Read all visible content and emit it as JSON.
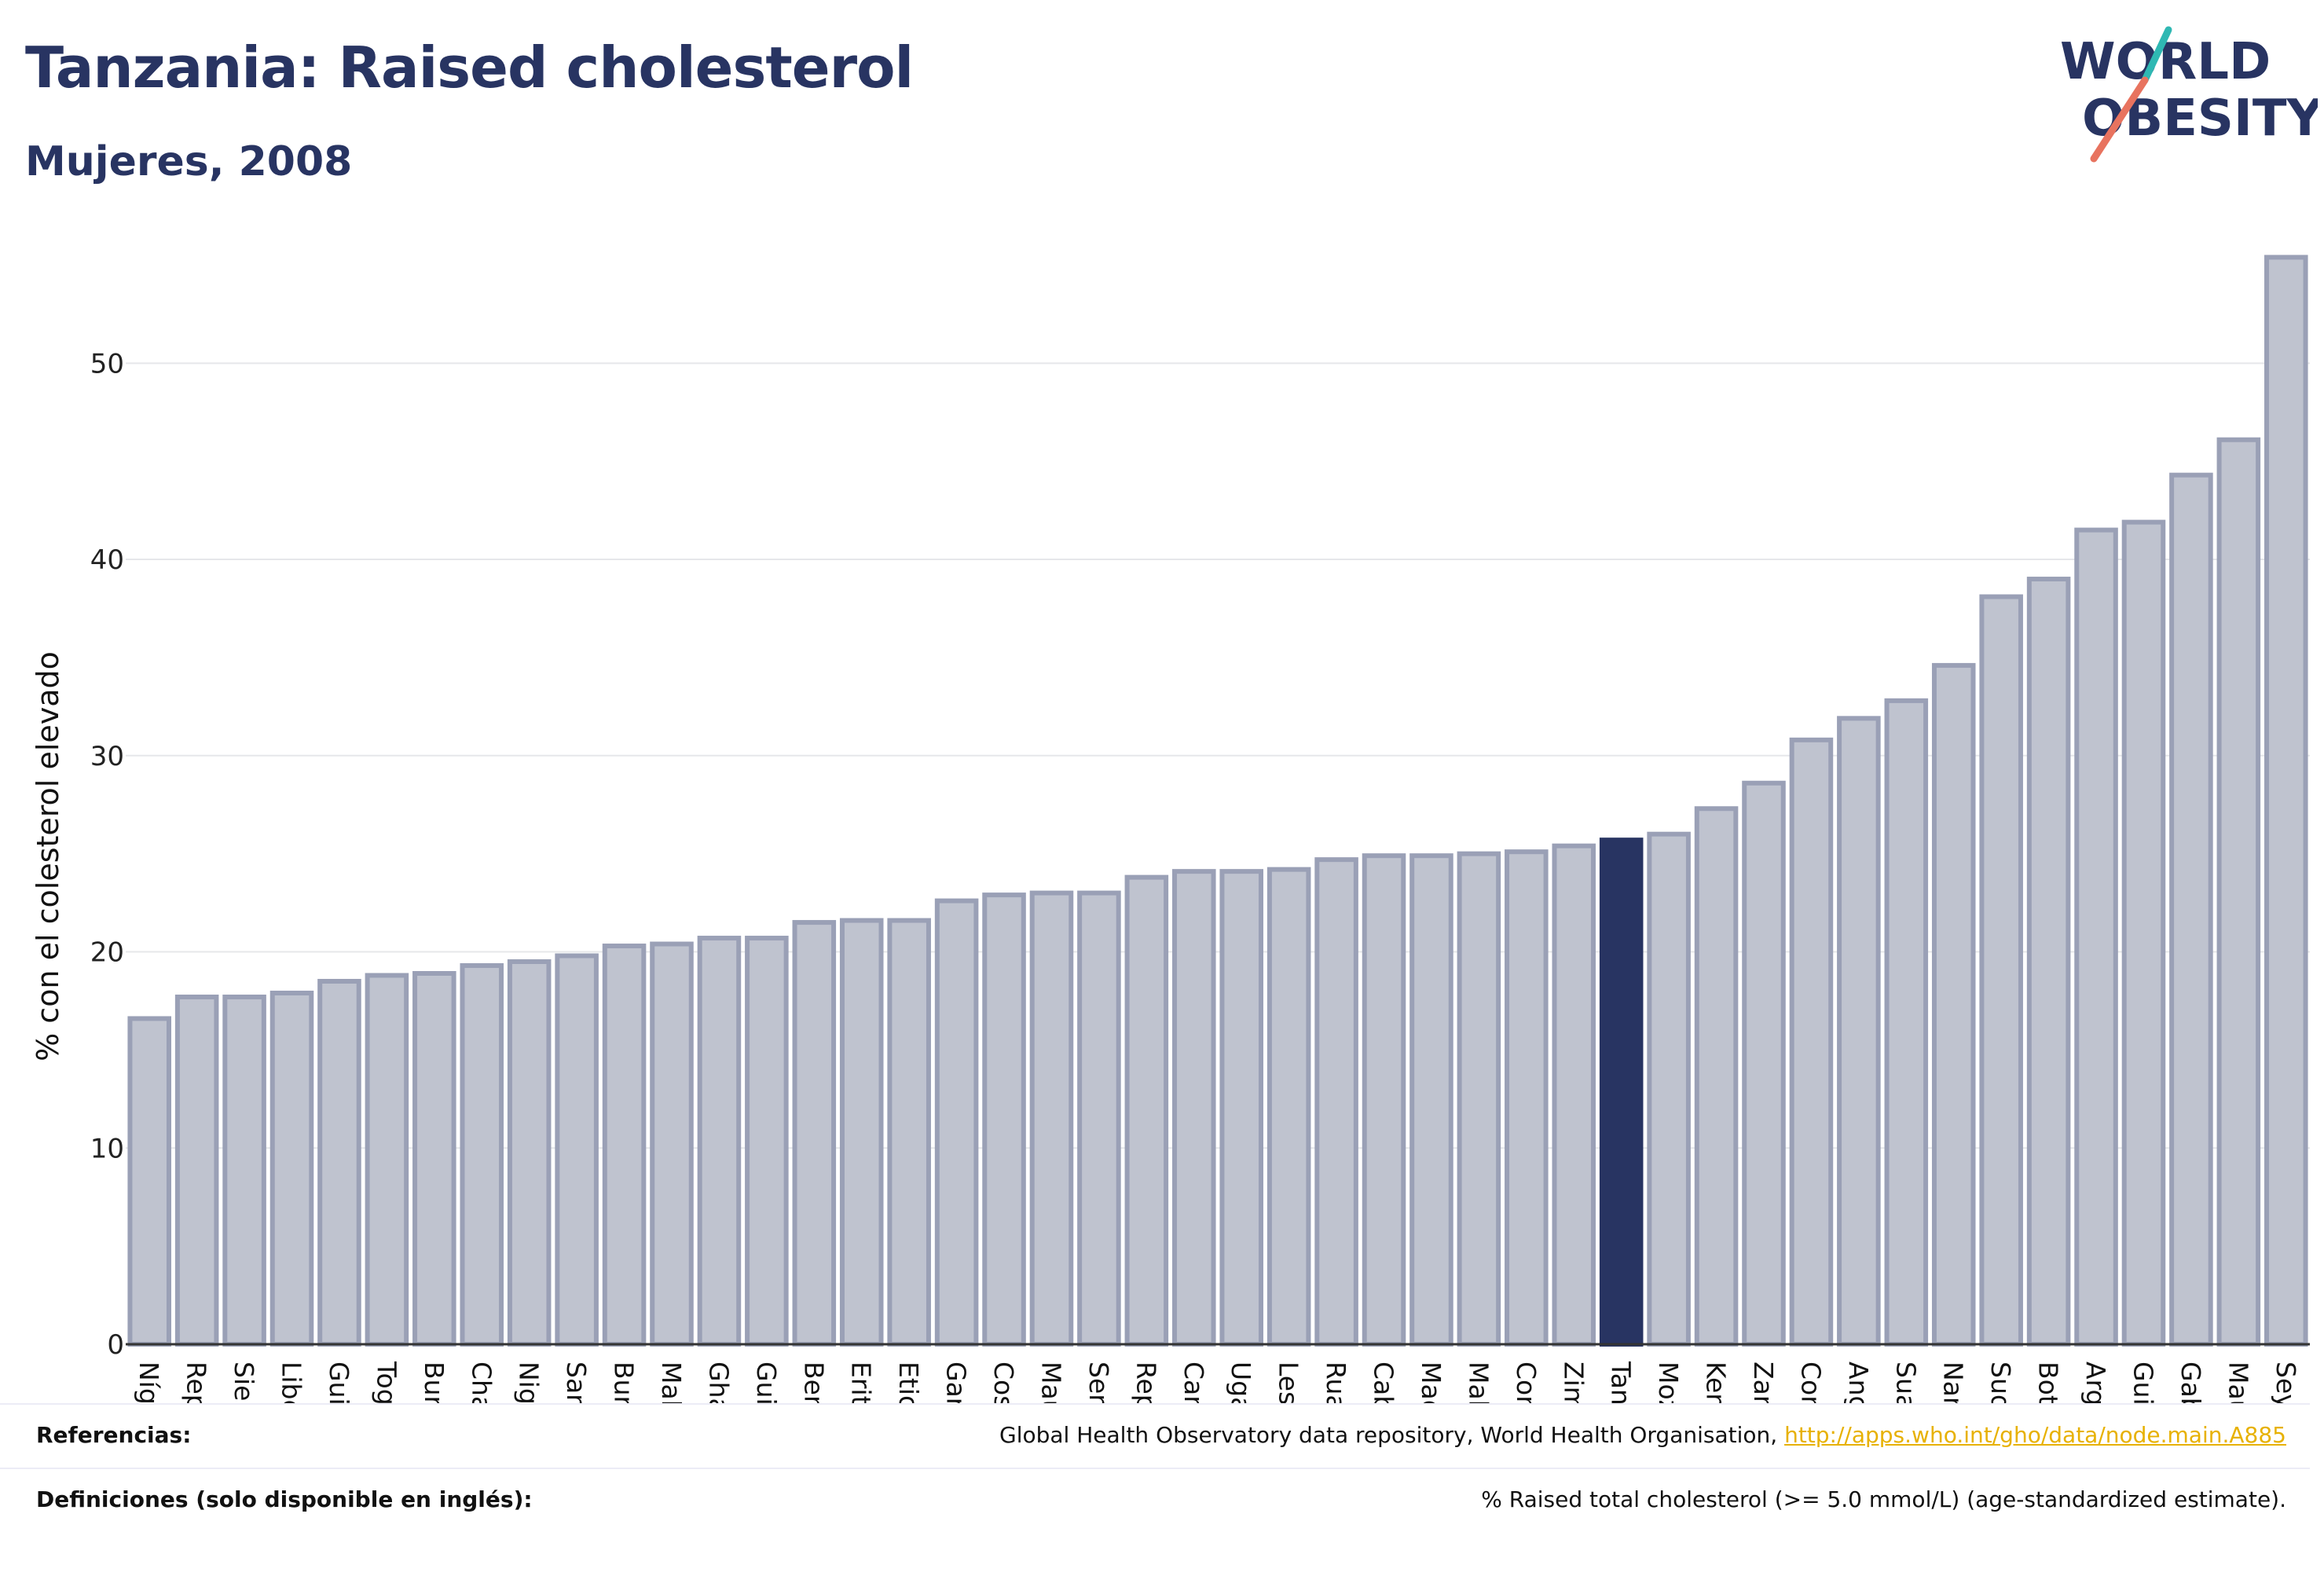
{
  "header": {
    "title": "Tanzania: Raised cholesterol",
    "subtitle": "Mujeres, 2008"
  },
  "logo": {
    "line1": "WORLD",
    "line2": "OBESITY",
    "accent_teal": "#2fb8b3",
    "accent_coral": "#e8735f"
  },
  "colors": {
    "bar": "#bfc3cf",
    "bar_outline": "#9aa0b6",
    "highlight": "#283462",
    "text": "#283462"
  },
  "chart_data": {
    "type": "bar",
    "ylabel": "% con el colesterol elevado",
    "ylim": [
      0,
      56.5
    ],
    "yticks": [
      0,
      10,
      20,
      30,
      40,
      50
    ],
    "grid": true,
    "highlight": "Tanzania",
    "categories": [
      "Níger",
      "República Dem",
      "Sierra Leona",
      "Liberia",
      "Guinea-Bisáu",
      "Togo",
      "Burkina Faso",
      "Chad",
      "Nigeria",
      "Santo Tomé y P",
      "Burundi",
      "Malí",
      "Ghana",
      "Guinea",
      "Benín",
      "Eritrea",
      "Etiopía",
      "Gambia",
      "Costa de Marfil",
      "Mauritania",
      "Senegal",
      "República Cent",
      "Camerún",
      "Uganda",
      "Lesoto",
      "Ruanda",
      "Cabo Verde",
      "Madagascar",
      "Malawi",
      "Comoras",
      "Zimbabue",
      "Tanzania",
      "Mozambique",
      "Kenia",
      "Zambia",
      "Congo",
      "Angola",
      "Suazilandia",
      "Namibia",
      "Sudáfrica",
      "Botsuana",
      "Argelia",
      "Guinea Ecuator",
      "Gabón",
      "Mauricio",
      "Seychelles"
    ],
    "values": [
      16.6,
      17.7,
      17.7,
      17.9,
      18.5,
      18.8,
      18.9,
      19.3,
      19.5,
      19.8,
      20.3,
      20.4,
      20.7,
      20.7,
      21.5,
      21.6,
      21.6,
      22.6,
      22.9,
      23.0,
      23.0,
      23.8,
      24.1,
      24.1,
      24.2,
      24.7,
      24.9,
      24.9,
      25.0,
      25.1,
      25.4,
      25.7,
      26.0,
      27.3,
      28.6,
      30.8,
      31.9,
      32.8,
      34.6,
      38.1,
      39.0,
      41.5,
      41.9,
      44.3,
      46.1,
      55.4
    ]
  },
  "footer": {
    "references_label": "Referencias:",
    "references_text": "Global Health Observatory data repository, World Health Organisation, ",
    "references_link": "http://apps.who.int/gho/data/node.main.A885",
    "definitions_label": "Definiciones (solo disponible en inglés):",
    "definitions_text": "% Raised total cholesterol (>= 5.0 mmol/L) (age-standardized estimate)."
  }
}
